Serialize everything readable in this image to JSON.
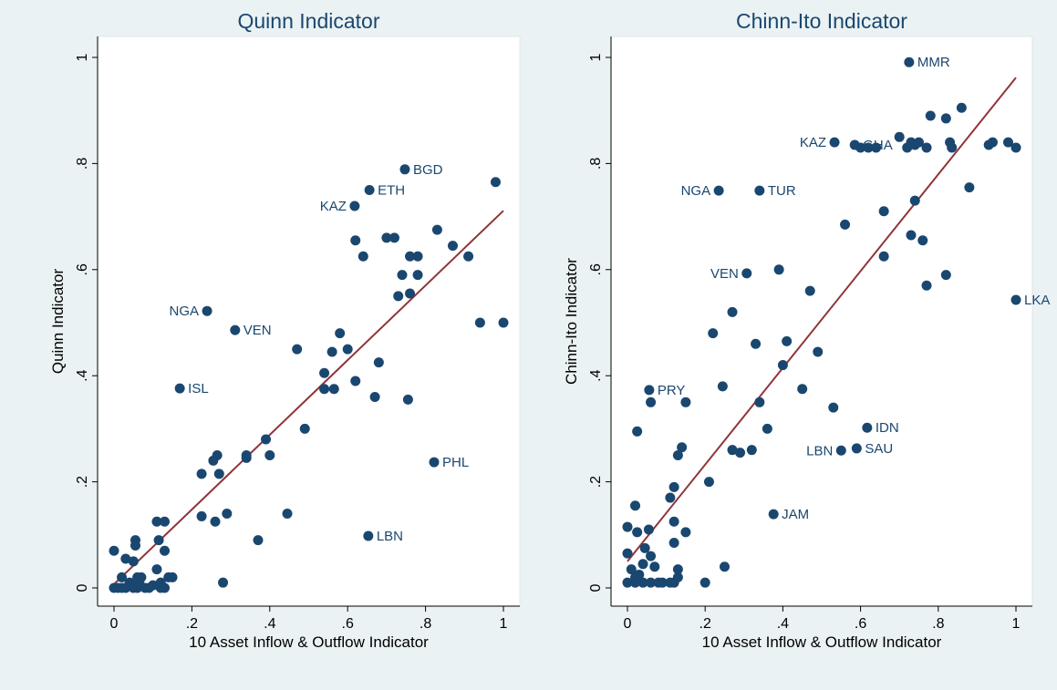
{
  "chart_data": [
    {
      "type": "scatter",
      "title": "Quinn Indicator",
      "xlabel": "10 Asset Inflow & Outflow Indicator",
      "ylabel": "Quinn Indicator",
      "xlim": [
        0,
        1
      ],
      "ylim": [
        0,
        1
      ],
      "xticks": [
        0,
        {
          "value": 0.2,
          "label": ".2"
        },
        {
          "value": 0.4,
          "label": ".4"
        },
        {
          "value": 0.6,
          "label": ".6"
        },
        {
          "value": 0.8,
          "label": ".8"
        },
        1
      ],
      "yticks": [
        0,
        {
          "value": 0.2,
          "label": ".2"
        },
        {
          "value": 0.4,
          "label": ".4"
        },
        {
          "value": 0.6,
          "label": ".6"
        },
        {
          "value": 0.8,
          "label": ".8"
        },
        1
      ],
      "color": "#1a476f",
      "x": [
        0.747,
        0.656,
        0.618,
        0.239,
        0.311,
        0.169,
        0.822,
        0.653,
        0.98,
        0.83,
        0.87,
        0.91,
        0.7,
        0.72,
        0.76,
        0.78,
        0.62,
        0.64,
        0.78,
        0.74,
        0.73,
        0.76,
        0.94,
        1.0,
        0.68,
        0.62,
        0.67,
        0.755,
        0.58,
        0.6,
        0.56,
        0.47,
        0.54,
        0.54,
        0.565,
        0.49,
        0.39,
        0.4,
        0.34,
        0.34,
        0.265,
        0.255,
        0.27,
        0.225,
        0.225,
        0.26,
        0.29,
        0.445,
        0.37,
        0.28,
        0.11,
        0.13,
        0.03,
        0.05,
        0.055,
        0.055,
        0.0,
        0.115,
        0.13,
        0.11,
        0.14,
        0.15,
        0.12,
        0.1,
        0.06,
        0.07,
        0.02,
        0.0,
        0.01,
        0.02,
        0.03,
        0.05,
        0.06,
        0.08,
        0.09,
        0.12,
        0.13,
        0.065,
        0.04
      ],
      "values": [
        0.789,
        0.75,
        0.72,
        0.522,
        0.486,
        0.376,
        0.237,
        0.098,
        0.765,
        0.675,
        0.645,
        0.625,
        0.66,
        0.66,
        0.625,
        0.625,
        0.655,
        0.625,
        0.59,
        0.59,
        0.55,
        0.555,
        0.5,
        0.5,
        0.425,
        0.39,
        0.36,
        0.355,
        0.48,
        0.45,
        0.445,
        0.45,
        0.405,
        0.375,
        0.375,
        0.3,
        0.28,
        0.25,
        0.25,
        0.245,
        0.25,
        0.24,
        0.215,
        0.215,
        0.135,
        0.125,
        0.14,
        0.14,
        0.09,
        0.01,
        0.125,
        0.125,
        0.055,
        0.05,
        0.09,
        0.08,
        0.07,
        0.09,
        0.07,
        0.035,
        0.02,
        0.02,
        0.01,
        0.005,
        0.02,
        0.02,
        0.02,
        0,
        0,
        0,
        0,
        0,
        0,
        0,
        0,
        0,
        0,
        0.01,
        0.01
      ],
      "labels": [
        "BGD",
        "ETH",
        "KAZ",
        "NGA",
        "VEN",
        "ISL",
        "PHL",
        "LBN",
        null,
        null,
        null,
        null,
        null,
        null,
        null,
        null,
        null,
        null,
        null,
        null,
        null,
        null,
        null,
        null,
        null,
        null,
        null,
        null,
        null,
        null,
        null,
        null,
        null,
        null,
        null,
        null,
        null,
        null,
        null,
        null,
        null,
        null,
        null,
        null,
        null,
        null,
        null,
        null,
        null,
        null,
        null,
        null,
        null,
        null,
        null,
        null,
        null,
        null,
        null,
        null,
        null,
        null,
        null,
        null,
        null,
        null,
        null,
        null,
        null,
        null,
        null,
        null,
        null,
        null,
        null,
        null,
        null,
        null,
        null
      ],
      "trend": {
        "x": [
          0,
          1
        ],
        "values": [
          0.007,
          0.711
        ],
        "color": "#90353b"
      }
    },
    {
      "type": "scatter",
      "title": "Chinn-Ito Indicator",
      "xlabel": "10 Asset Inflow & Outflow Indicator",
      "ylabel": "Chinn-Ito Indicator",
      "xlim": [
        0,
        1
      ],
      "ylim": [
        0,
        1
      ],
      "xticks": [
        0,
        {
          "value": 0.2,
          "label": ".2"
        },
        {
          "value": 0.4,
          "label": ".4"
        },
        {
          "value": 0.6,
          "label": ".6"
        },
        {
          "value": 0.8,
          "label": ".8"
        },
        1
      ],
      "yticks": [
        0,
        {
          "value": 0.2,
          "label": ".2"
        },
        {
          "value": 0.4,
          "label": ".4"
        },
        {
          "value": 0.6,
          "label": ".6"
        },
        {
          "value": 0.8,
          "label": ".8"
        },
        1
      ],
      "color": "#1a476f",
      "x": [
        0.725,
        0.533,
        0.585,
        0.235,
        0.34,
        0.307,
        1.0,
        0.056,
        0.617,
        0.55,
        0.59,
        0.376,
        0.74,
        0.72,
        0.75,
        0.73,
        0.77,
        0.7,
        0.78,
        0.82,
        0.86,
        0.83,
        0.835,
        0.93,
        0.94,
        0.98,
        1.0,
        0.6,
        0.62,
        0.64,
        0.88,
        0.74,
        0.66,
        0.56,
        0.73,
        0.76,
        0.66,
        0.82,
        0.77,
        0.39,
        0.47,
        0.27,
        0.22,
        0.33,
        0.41,
        0.49,
        0.4,
        0.45,
        0.245,
        0.34,
        0.53,
        0.36,
        0.32,
        0.27,
        0.29,
        0.21,
        0.14,
        0.13,
        0.12,
        0.11,
        0.12,
        0.15,
        0.12,
        0.06,
        0.15,
        0.025,
        0.02,
        0.0,
        0.025,
        0.045,
        0.055,
        0.06,
        0.0,
        0.01,
        0.04,
        0.07,
        0.13,
        0.25,
        0.2,
        0.0,
        0.02,
        0.04,
        0.06,
        0.09,
        0.11,
        0.12,
        0.13,
        0.02,
        0.03,
        0.08
      ],
      "values": [
        0.991,
        0.84,
        0.835,
        0.749,
        0.749,
        0.593,
        0.543,
        0.373,
        0.302,
        0.259,
        0.263,
        0.139,
        0.835,
        0.83,
        0.84,
        0.84,
        0.83,
        0.85,
        0.89,
        0.885,
        0.905,
        0.84,
        0.83,
        0.835,
        0.84,
        0.84,
        0.83,
        0.83,
        0.83,
        0.83,
        0.755,
        0.73,
        0.71,
        0.685,
        0.665,
        0.655,
        0.625,
        0.59,
        0.57,
        0.6,
        0.56,
        0.52,
        0.48,
        0.46,
        0.465,
        0.445,
        0.42,
        0.375,
        0.38,
        0.35,
        0.34,
        0.3,
        0.26,
        0.26,
        0.255,
        0.2,
        0.265,
        0.25,
        0.19,
        0.17,
        0.125,
        0.105,
        0.085,
        0.35,
        0.35,
        0.295,
        0.155,
        0.115,
        0.105,
        0.075,
        0.11,
        0.06,
        0.065,
        0.035,
        0.045,
        0.04,
        0.035,
        0.04,
        0.01,
        0.01,
        0.01,
        0.01,
        0.01,
        0.01,
        0.01,
        0.01,
        0.02,
        0.02,
        0.025,
        0.01
      ],
      "labels": [
        "MMR",
        "KAZ",
        "GHA",
        "NGA",
        "TUR",
        "VEN",
        "LKA",
        "PRY",
        "IDN",
        "LBN",
        "SAU",
        "JAM",
        null,
        null,
        null,
        null,
        null,
        null,
        null,
        null,
        null,
        null,
        null,
        null,
        null,
        null,
        null,
        null,
        null,
        null,
        null,
        null,
        null,
        null,
        null,
        null,
        null,
        null,
        null,
        null,
        null,
        null,
        null,
        null,
        null,
        null,
        null,
        null,
        null,
        null,
        null,
        null,
        null,
        null,
        null,
        null,
        null,
        null,
        null,
        null,
        null,
        null,
        null,
        null,
        null,
        null,
        null,
        null,
        null,
        null,
        null,
        null,
        null,
        null,
        null,
        null,
        null,
        null,
        null,
        null,
        null,
        null,
        null,
        null,
        null,
        null,
        null,
        null,
        null,
        null
      ],
      "trend": {
        "x": [
          0,
          1
        ],
        "values": [
          0.05,
          0.962
        ],
        "color": "#90353b"
      }
    }
  ]
}
